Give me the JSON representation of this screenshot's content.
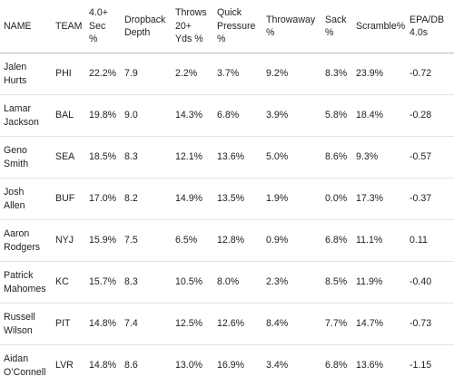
{
  "table": {
    "headers": [
      "NAME",
      "TEAM",
      "4.0+\nSec\n%",
      "Dropback\nDepth",
      "Throws\n20+\nYds %",
      "Quick\nPressure\n%",
      "Throwaway\n%",
      "Sack\n%",
      "Scramble%",
      "EPA/DB\n4.0s"
    ],
    "rows": [
      [
        "Jalen\nHurts",
        "PHI",
        "22.2%",
        "7.9",
        "2.2%",
        "3.7%",
        "9.2%",
        "8.3%",
        "23.9%",
        "-0.72"
      ],
      [
        "Lamar\nJackson",
        "BAL",
        "19.8%",
        "9.0",
        "14.3%",
        "6.8%",
        "3.9%",
        "5.8%",
        "18.4%",
        "-0.28"
      ],
      [
        "Geno\nSmith",
        "SEA",
        "18.5%",
        "8.3",
        "12.1%",
        "13.6%",
        "5.0%",
        "8.6%",
        "9.3%",
        "-0.57"
      ],
      [
        "Josh\nAllen",
        "BUF",
        "17.0%",
        "8.2",
        "14.9%",
        "13.5%",
        "1.9%",
        "0.0%",
        "17.3%",
        "-0.37"
      ],
      [
        "Aaron\nRodgers",
        "NYJ",
        "15.9%",
        "7.5",
        "6.5%",
        "12.8%",
        "0.9%",
        "6.8%",
        "11.1%",
        "0.11"
      ],
      [
        "Patrick\nMahomes",
        "KC",
        "15.7%",
        "8.3",
        "10.5%",
        "8.0%",
        "2.3%",
        "8.5%",
        "11.9%",
        "-0.40"
      ],
      [
        "Russell\nWilson",
        "PIT",
        "14.8%",
        "7.4",
        "12.5%",
        "12.6%",
        "8.4%",
        "7.7%",
        "14.7%",
        "-0.73"
      ],
      [
        "Aidan\nO’Connell",
        "LVR",
        "14.8%",
        "8.6",
        "13.0%",
        "16.9%",
        "3.4%",
        "6.8%",
        "13.6%",
        "-1.15"
      ]
    ]
  },
  "colors": {
    "text": "#222222",
    "header_rule": "#bdbdbd",
    "row_rule": "#e3e3e3",
    "background": "#ffffff"
  }
}
